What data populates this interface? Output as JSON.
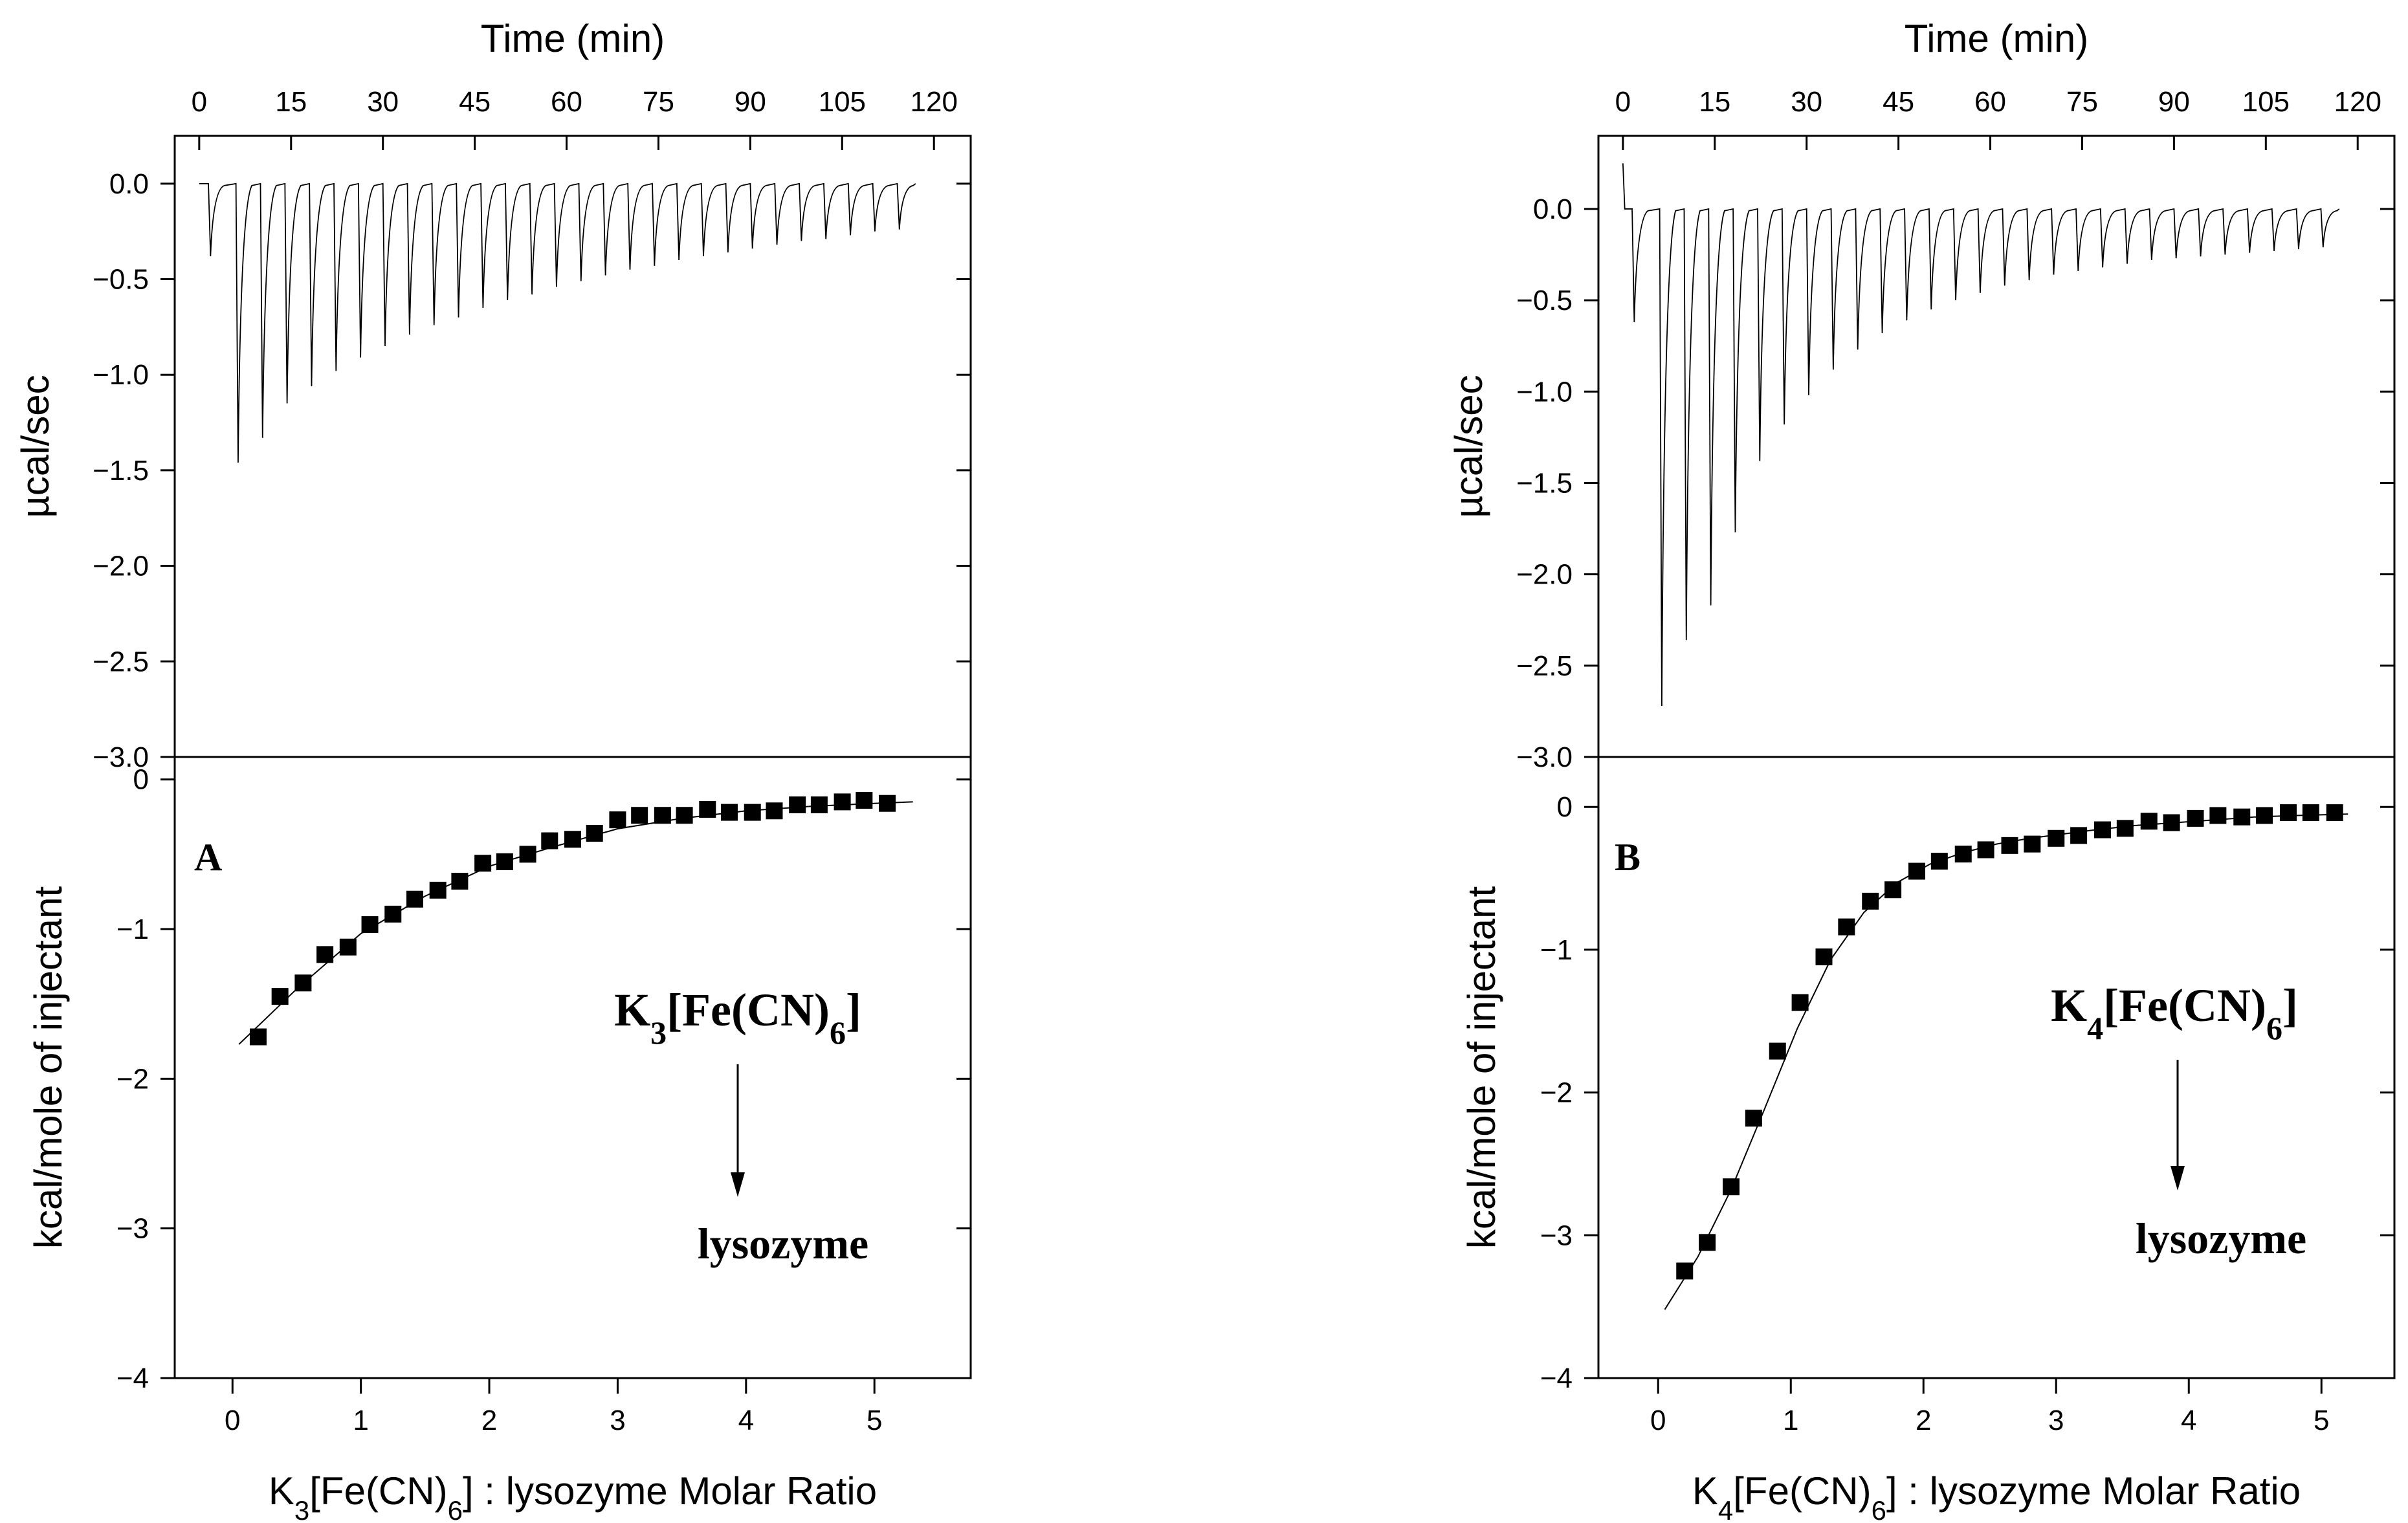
{
  "chart_data": [
    {
      "panel": "A",
      "type": "line",
      "title": "",
      "top": {
        "xlabel": "Time (min)",
        "ylabel": "µcal/sec",
        "xlim": [
          -4,
          126
        ],
        "ylim": [
          -3.0,
          0.25
        ],
        "xticks": [
          0,
          15,
          30,
          45,
          60,
          75,
          90,
          105,
          120
        ],
        "xtick_labels": [
          "0",
          "15",
          "30",
          "45",
          "60",
          "75",
          "90",
          "105",
          "120"
        ],
        "yticks": [
          0.0,
          -0.5,
          -1.0,
          -1.5,
          -2.0,
          -2.5,
          -3.0
        ],
        "ytick_labels": [
          "0.0",
          "−0.5",
          "−1.0",
          "−1.5",
          "−2.0",
          "−2.5",
          "−3.0"
        ],
        "series": [
          {
            "name": "thermogram",
            "start_time": 0,
            "end_time": 117,
            "injection_times": [
              1.5,
              6,
              10,
              14,
              18,
              22,
              26,
              30,
              34,
              38,
              42,
              46,
              50,
              54,
              58,
              62,
              66,
              70,
              74,
              78,
              82,
              86,
              90,
              94,
              98,
              102,
              106,
              110,
              114
            ],
            "peak_values": [
              -0.38,
              -1.46,
              -1.33,
              -1.15,
              -1.06,
              -0.98,
              -0.91,
              -0.85,
              -0.79,
              -0.74,
              -0.7,
              -0.65,
              -0.61,
              -0.58,
              -0.54,
              -0.51,
              -0.48,
              -0.45,
              -0.43,
              -0.4,
              -0.38,
              -0.36,
              -0.34,
              -0.32,
              -0.3,
              -0.29,
              -0.27,
              -0.25,
              -0.24
            ]
          }
        ]
      },
      "bottom": {
        "xlabel_main": "K",
        "xlabel_sub1": "3",
        "xlabel_mid": "[Fe(CN)",
        "xlabel_sub2": "6",
        "xlabel_end": "] : lysozyme Molar Ratio",
        "ylabel": "kcal/mole of injectant",
        "xlim": [
          -0.45,
          5.75
        ],
        "ylim": [
          -4,
          0.15
        ],
        "xticks": [
          0,
          1,
          2,
          3,
          4,
          5
        ],
        "xtick_labels": [
          "0",
          "1",
          "2",
          "3",
          "4",
          "5"
        ],
        "yticks": [
          0,
          -1,
          -2,
          -3,
          -4
        ],
        "ytick_labels": [
          "0",
          "−1",
          "−2",
          "−3",
          "−4"
        ],
        "series": [
          {
            "name": "integrated heats",
            "x": [
              0.2,
              0.37,
              0.55,
              0.72,
              0.9,
              1.07,
              1.25,
              1.42,
              1.6,
              1.77,
              1.95,
              2.12,
              2.3,
              2.47,
              2.65,
              2.82,
              3.0,
              3.17,
              3.35,
              3.52,
              3.7,
              3.87,
              4.05,
              4.22,
              4.4,
              4.57,
              4.75,
              4.92,
              5.1
            ],
            "y": [
              -1.72,
              -1.45,
              -1.36,
              -1.17,
              -1.12,
              -0.97,
              -0.9,
              -0.8,
              -0.74,
              -0.68,
              -0.56,
              -0.55,
              -0.5,
              -0.41,
              -0.4,
              -0.36,
              -0.27,
              -0.24,
              -0.24,
              -0.24,
              -0.2,
              -0.22,
              -0.22,
              -0.21,
              -0.17,
              -0.17,
              -0.15,
              -0.14,
              -0.16
            ]
          },
          {
            "name": "fit",
            "x": [
              0.05,
              0.5,
              1.0,
              1.5,
              2.0,
              2.5,
              3.0,
              3.5,
              4.0,
              4.5,
              5.0,
              5.3
            ],
            "y": [
              -1.77,
              -1.4,
              -1.03,
              -0.78,
              -0.58,
              -0.45,
              -0.33,
              -0.26,
              -0.21,
              -0.18,
              -0.16,
              -0.15
            ]
          }
        ],
        "annotations": {
          "panel_letter": "A",
          "reagent_main": "K",
          "reagent_sub1": "3",
          "reagent_mid": "[Fe(CN)",
          "reagent_sub2": "6",
          "reagent_end": "]",
          "target": "lysozyme"
        }
      }
    },
    {
      "panel": "B",
      "type": "line",
      "title": "",
      "top": {
        "xlabel": "Time (min)",
        "ylabel": "µcal/sec",
        "xlim": [
          -4,
          126
        ],
        "ylim": [
          -3.0,
          0.4
        ],
        "xticks": [
          0,
          15,
          30,
          45,
          60,
          75,
          90,
          105,
          120
        ],
        "xtick_labels": [
          "0",
          "15",
          "30",
          "45",
          "60",
          "75",
          "90",
          "105",
          "120"
        ],
        "yticks": [
          0.0,
          -0.5,
          -1.0,
          -1.5,
          -2.0,
          -2.5,
          -3.0
        ],
        "ytick_labels": [
          "0.0",
          "−0.5",
          "−1.0",
          "−1.5",
          "−2.0",
          "−2.5",
          "−3.0"
        ],
        "series": [
          {
            "name": "thermogram",
            "start_time": 0,
            "end_time": 117,
            "initial_value": 0.25,
            "injection_times": [
              1.5,
              6,
              10,
              14,
              18,
              22,
              26,
              30,
              34,
              38,
              42,
              46,
              50,
              54,
              58,
              62,
              66,
              70,
              74,
              78,
              82,
              86,
              90,
              94,
              98,
              102,
              106,
              110,
              114
            ],
            "peak_values": [
              -0.62,
              -2.72,
              -2.36,
              -2.17,
              -1.77,
              -1.38,
              -1.18,
              -1.02,
              -0.88,
              -0.77,
              -0.68,
              -0.61,
              -0.55,
              -0.5,
              -0.46,
              -0.42,
              -0.39,
              -0.36,
              -0.34,
              -0.32,
              -0.3,
              -0.28,
              -0.27,
              -0.26,
              -0.25,
              -0.24,
              -0.23,
              -0.22,
              -0.21
            ]
          }
        ]
      },
      "bottom": {
        "xlabel_main": "K",
        "xlabel_sub1": "4",
        "xlabel_mid": "[Fe(CN)",
        "xlabel_sub2": "6",
        "xlabel_end": "] : lysozyme Molar Ratio",
        "ylabel": "kcal/mole of injectant",
        "xlim": [
          -0.45,
          5.55
        ],
        "ylim": [
          -4,
          0.35
        ],
        "xticks": [
          0,
          1,
          2,
          3,
          4,
          5
        ],
        "xtick_labels": [
          "0",
          "1",
          "2",
          "3",
          "4",
          "5"
        ],
        "yticks": [
          0,
          -1,
          -2,
          -3,
          -4
        ],
        "ytick_labels": [
          "0",
          "−1",
          "−2",
          "−3",
          "−4"
        ],
        "series": [
          {
            "name": "integrated heats",
            "x": [
              0.2,
              0.37,
              0.55,
              0.72,
              0.9,
              1.07,
              1.25,
              1.42,
              1.6,
              1.77,
              1.95,
              2.12,
              2.3,
              2.47,
              2.65,
              2.82,
              3.0,
              3.17,
              3.35,
              3.52,
              3.7,
              3.87,
              4.05,
              4.22,
              4.4,
              4.57,
              4.75,
              4.92,
              5.1
            ],
            "y": [
              -3.25,
              -3.05,
              -2.66,
              -2.18,
              -1.71,
              -1.37,
              -1.05,
              -0.84,
              -0.66,
              -0.58,
              -0.45,
              -0.38,
              -0.33,
              -0.3,
              -0.27,
              -0.26,
              -0.22,
              -0.2,
              -0.16,
              -0.15,
              -0.1,
              -0.11,
              -0.08,
              -0.06,
              -0.07,
              -0.06,
              -0.04,
              -0.04,
              -0.04
            ]
          },
          {
            "name": "fit",
            "x": [
              0.05,
              0.3,
              0.55,
              0.8,
              1.05,
              1.3,
              1.55,
              1.8,
              2.05,
              2.3,
              2.55,
              2.8,
              3.05,
              3.3,
              3.6,
              3.9,
              4.2,
              4.5,
              4.8,
              5.2
            ],
            "y": [
              -3.52,
              -3.15,
              -2.68,
              -2.12,
              -1.55,
              -1.07,
              -0.74,
              -0.53,
              -0.4,
              -0.32,
              -0.26,
              -0.22,
              -0.19,
              -0.16,
              -0.13,
              -0.11,
              -0.09,
              -0.07,
              -0.06,
              -0.05
            ]
          }
        ],
        "annotations": {
          "panel_letter": "B",
          "reagent_main": "K",
          "reagent_sub1": "4",
          "reagent_mid": "[Fe(CN)",
          "reagent_sub2": "6",
          "reagent_end": "]",
          "target": "lysozyme"
        }
      }
    }
  ]
}
